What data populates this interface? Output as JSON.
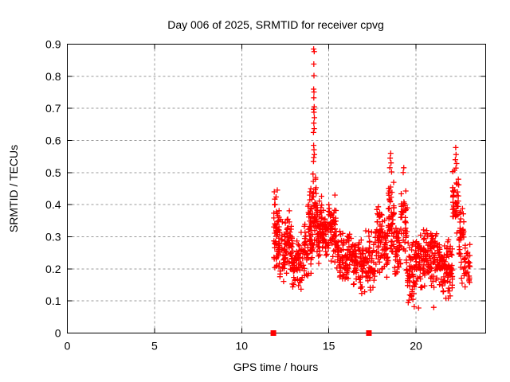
{
  "chart_data": {
    "type": "scatter",
    "title": "Day 006 of 2025, SRMTID for receiver cpvg",
    "xlabel": "GPS time / hours",
    "ylabel": "SRMTID / TECUs",
    "xlim": [
      0,
      24
    ],
    "ylim": [
      0,
      0.9
    ],
    "xticks": [
      0,
      5,
      10,
      15,
      20
    ],
    "yticks": [
      0,
      0.1,
      0.2,
      0.3,
      0.4,
      0.5,
      0.6,
      0.7,
      0.8,
      0.9
    ],
    "grid": true,
    "legend": "none",
    "marker": {
      "shape": "plus",
      "color": "#ff0000",
      "size": 7
    },
    "data_time_range_hours": [
      11.8,
      23.1
    ],
    "scatter_bands": [
      [
        11.82,
        12.15,
        0.17,
        0.45,
        60
      ],
      [
        12.15,
        12.55,
        0.14,
        0.36,
        45
      ],
      [
        12.55,
        12.9,
        0.16,
        0.4,
        45
      ],
      [
        12.9,
        13.35,
        0.11,
        0.31,
        50
      ],
      [
        13.35,
        13.8,
        0.13,
        0.36,
        45
      ],
      [
        13.8,
        14.05,
        0.15,
        0.46,
        50
      ],
      [
        14.05,
        14.3,
        0.22,
        0.52,
        40
      ],
      [
        14.3,
        14.6,
        0.2,
        0.44,
        45
      ],
      [
        14.6,
        15.0,
        0.22,
        0.41,
        50
      ],
      [
        15.0,
        15.45,
        0.2,
        0.43,
        55
      ],
      [
        15.45,
        15.95,
        0.13,
        0.34,
        50
      ],
      [
        15.95,
        16.4,
        0.15,
        0.35,
        45
      ],
      [
        16.4,
        16.8,
        0.13,
        0.31,
        40
      ],
      [
        16.8,
        17.25,
        0.11,
        0.33,
        45
      ],
      [
        17.25,
        17.65,
        0.11,
        0.34,
        45
      ],
      [
        17.65,
        18.05,
        0.15,
        0.42,
        50
      ],
      [
        18.05,
        18.4,
        0.15,
        0.36,
        40
      ],
      [
        18.4,
        18.75,
        0.22,
        0.5,
        50
      ],
      [
        18.75,
        19.1,
        0.14,
        0.38,
        40
      ],
      [
        19.1,
        19.5,
        0.15,
        0.48,
        45
      ],
      [
        19.5,
        19.95,
        0.09,
        0.3,
        50
      ],
      [
        19.95,
        20.4,
        0.1,
        0.32,
        50
      ],
      [
        20.4,
        20.85,
        0.12,
        0.35,
        50
      ],
      [
        20.85,
        21.35,
        0.12,
        0.33,
        55
      ],
      [
        21.35,
        21.8,
        0.1,
        0.31,
        50
      ],
      [
        21.8,
        22.1,
        0.09,
        0.3,
        40
      ],
      [
        22.1,
        22.45,
        0.3,
        0.52,
        45
      ],
      [
        22.45,
        22.75,
        0.13,
        0.44,
        35
      ],
      [
        22.75,
        23.1,
        0.1,
        0.3,
        35
      ]
    ],
    "outlier_points": [
      [
        14.13,
        0.885
      ],
      [
        14.16,
        0.877
      ],
      [
        14.14,
        0.838
      ],
      [
        14.15,
        0.802
      ],
      [
        14.13,
        0.76
      ],
      [
        14.15,
        0.751
      ],
      [
        14.14,
        0.733
      ],
      [
        14.16,
        0.705
      ],
      [
        14.13,
        0.697
      ],
      [
        14.15,
        0.688
      ],
      [
        14.17,
        0.671
      ],
      [
        14.14,
        0.654
      ],
      [
        14.16,
        0.637
      ],
      [
        14.12,
        0.625
      ],
      [
        14.13,
        0.585
      ],
      [
        14.15,
        0.571
      ],
      [
        14.17,
        0.556
      ],
      [
        14.14,
        0.547
      ],
      [
        14.12,
        0.535
      ],
      [
        18.55,
        0.56
      ],
      [
        18.52,
        0.545
      ],
      [
        18.57,
        0.53
      ],
      [
        18.5,
        0.515
      ],
      [
        18.6,
        0.502
      ],
      [
        19.3,
        0.515
      ],
      [
        19.27,
        0.5
      ],
      [
        22.28,
        0.578
      ],
      [
        22.3,
        0.556
      ],
      [
        22.26,
        0.54
      ],
      [
        22.33,
        0.528
      ],
      [
        22.29,
        0.514
      ],
      [
        13.92,
        0.44
      ],
      [
        13.97,
        0.45
      ],
      [
        11.87,
        0.44
      ],
      [
        15.35,
        0.43
      ],
      [
        19.9,
        0.082
      ],
      [
        20.15,
        0.078
      ],
      [
        21.02,
        0.08
      ]
    ],
    "axis_event_markers": {
      "shape": "filled-square",
      "color": "#ff0000",
      "size": 7,
      "y": 0,
      "x": [
        11.82,
        17.3
      ]
    },
    "render_seed": 20250106
  },
  "style": {
    "background": "#ffffff",
    "grid_color": "#999999",
    "axis_color": "#000000",
    "text_color": "#000000",
    "point_color": "#ff0000"
  }
}
